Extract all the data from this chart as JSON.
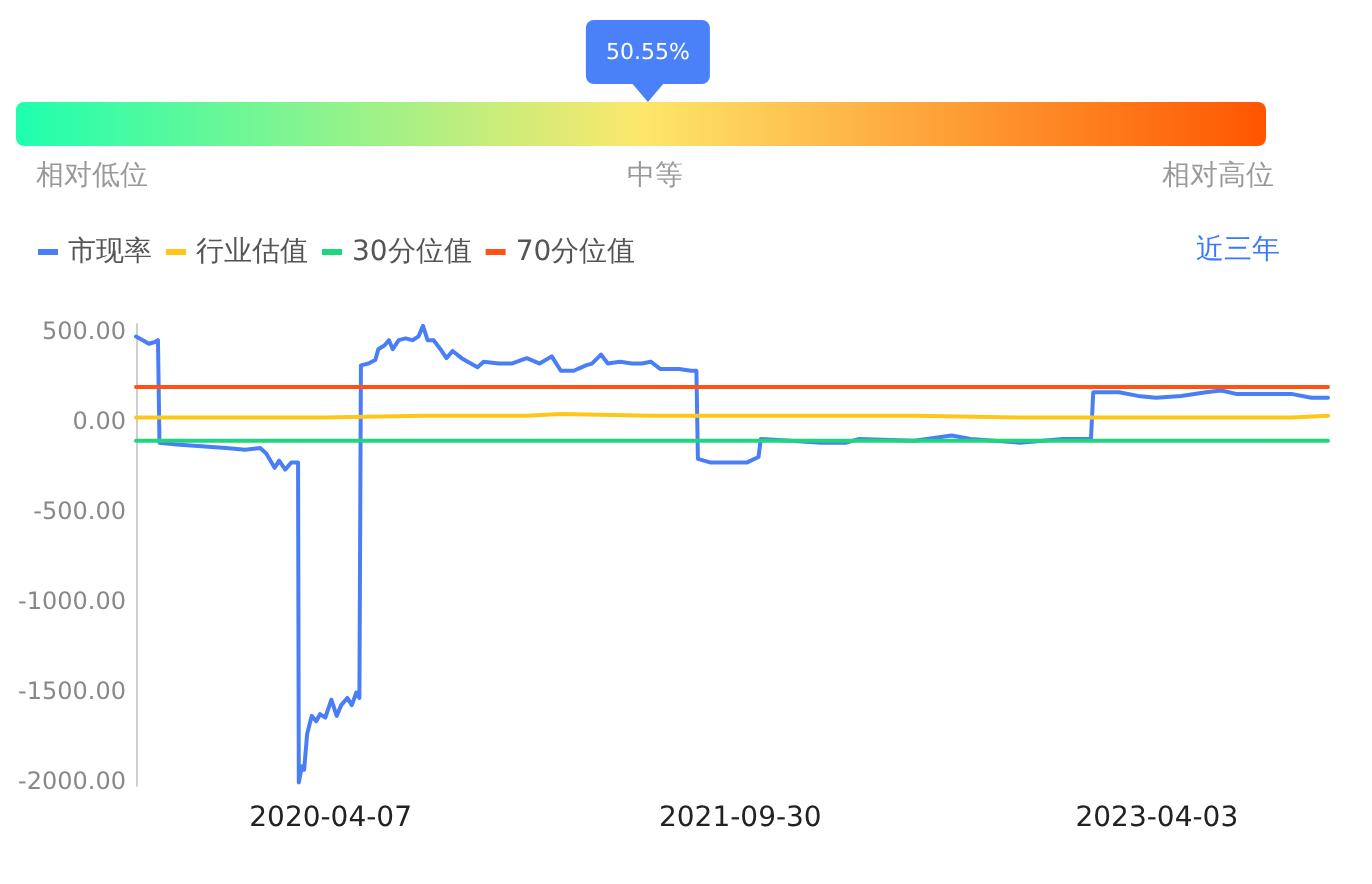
{
  "chart_data": [
    {
      "type": "other",
      "annotations": [
        "相对低位",
        "中等",
        "相对高位"
      ],
      "values": [
        50.55
      ],
      "value_labels": [
        "50.55%"
      ],
      "color": "#4a80f8"
    },
    {
      "type": "line",
      "annotations": [
        "近三年"
      ],
      "legend": "top left",
      "grid": false,
      "marker": "none",
      "line_style": "solid",
      "xlim": [
        "2019-07-25",
        "2023-11-15"
      ],
      "xticks": [
        "2020-04-07",
        "2021-09-30",
        "2023-04-03"
      ],
      "ylim": [
        -2030,
        540
      ],
      "yticks": [
        {
          "value": 500,
          "label": "500.00"
        },
        {
          "value": 0,
          "label": "0.00"
        },
        {
          "value": -500,
          "label": "-500.00"
        },
        {
          "value": -1000,
          "label": "-1000.00"
        },
        {
          "value": -1500,
          "label": "-1500.00"
        },
        {
          "value": -2000,
          "label": "-2000.00"
        }
      ],
      "series": [
        {
          "name": "市现率",
          "color": "#4a7ef6",
          "x": [
            "2019-07-25",
            "2019-08-03",
            "2019-08-11",
            "2019-08-19",
            "2019-08-23",
            "2019-08-25",
            "2019-09-17",
            "2019-10-19",
            "2019-11-21",
            "2019-12-16",
            "2020-01-05",
            "2020-01-13",
            "2020-01-24",
            "2020-01-30",
            "2020-02-07",
            "2020-02-15",
            "2020-02-24",
            "2020-02-25",
            "2020-02-29",
            "2020-03-03",
            "2020-03-07",
            "2020-03-13",
            "2020-03-19",
            "2020-03-24",
            "2020-03-31",
            "2020-04-08",
            "2020-04-15",
            "2020-04-21",
            "2020-04-29",
            "2020-05-05",
            "2020-05-11",
            "2020-05-15",
            "2020-05-17",
            "2020-05-27",
            "2020-06-05",
            "2020-06-09",
            "2020-06-17",
            "2020-06-23",
            "2020-06-28",
            "2020-07-06",
            "2020-07-15",
            "2020-07-24",
            "2020-08-01",
            "2020-08-07",
            "2020-08-13",
            "2020-08-21",
            "2020-08-30",
            "2020-09-07",
            "2020-09-15",
            "2020-09-27",
            "2020-10-05",
            "2020-10-18",
            "2020-10-26",
            "2020-11-15",
            "2020-12-02",
            "2020-12-22",
            "2021-01-08",
            "2021-01-24",
            "2021-02-05",
            "2021-02-22",
            "2021-03-10",
            "2021-03-18",
            "2021-03-30",
            "2021-04-08",
            "2021-04-24",
            "2021-05-10",
            "2021-05-23",
            "2021-06-04",
            "2021-06-16",
            "2021-07-11",
            "2021-07-27",
            "2021-08-03",
            "2021-08-05",
            "2021-08-21",
            "2021-09-14",
            "2021-10-09",
            "2021-10-24",
            "2021-10-27",
            "2021-12-05",
            "2022-01-15",
            "2022-02-17",
            "2022-03-05",
            "2022-05-18",
            "2022-07-06",
            "2022-07-31",
            "2022-10-04",
            "2022-11-30",
            "2023-01-06",
            "2023-01-09",
            "2023-02-12",
            "2023-03-09",
            "2023-04-02",
            "2023-05-05",
            "2023-06-07",
            "2023-06-27",
            "2023-07-18",
            "2023-08-19",
            "2023-09-29",
            "2023-10-24",
            "2023-11-15"
          ],
          "values": [
            470,
            450,
            430,
            440,
            450,
            -120,
            -130,
            -140,
            -150,
            -160,
            -150,
            -180,
            -260,
            -220,
            -270,
            -230,
            -230,
            -2010,
            -1920,
            -1940,
            -1740,
            -1640,
            -1670,
            -1630,
            -1650,
            -1550,
            -1640,
            -1580,
            -1540,
            -1580,
            -1510,
            -1540,
            310,
            320,
            340,
            400,
            420,
            450,
            400,
            450,
            460,
            450,
            470,
            530,
            450,
            450,
            400,
            350,
            390,
            350,
            330,
            300,
            330,
            320,
            320,
            350,
            320,
            360,
            280,
            280,
            310,
            320,
            370,
            320,
            330,
            320,
            320,
            330,
            290,
            290,
            280,
            280,
            -210,
            -230,
            -230,
            -230,
            -200,
            -100,
            -110,
            -120,
            -120,
            -100,
            -110,
            -80,
            -100,
            -120,
            -100,
            -100,
            160,
            160,
            140,
            130,
            140,
            160,
            170,
            150,
            150,
            150,
            130,
            130
          ]
        },
        {
          "name": "行业估值",
          "color": "#ffc61a",
          "x": [
            "2019-07-25",
            "2019-12-16",
            "2020-03-31",
            "2020-08-07",
            "2020-12-22",
            "2021-02-05",
            "2021-06-04",
            "2021-10-24",
            "2022-05-18",
            "2022-10-04",
            "2023-01-06",
            "2023-05-05",
            "2023-09-29",
            "2023-11-15"
          ],
          "values": [
            20,
            20,
            20,
            30,
            30,
            40,
            30,
            30,
            30,
            20,
            20,
            20,
            20,
            30
          ]
        },
        {
          "name": "30分位值",
          "color": "#1fd67f",
          "x": [
            "2019-07-25",
            "2023-11-15"
          ],
          "values": [
            -110,
            -110
          ]
        },
        {
          "name": "70分位值",
          "color": "#ff5215",
          "x": [
            "2019-07-25",
            "2023-11-15"
          ],
          "values": [
            190,
            190
          ]
        }
      ]
    }
  ]
}
